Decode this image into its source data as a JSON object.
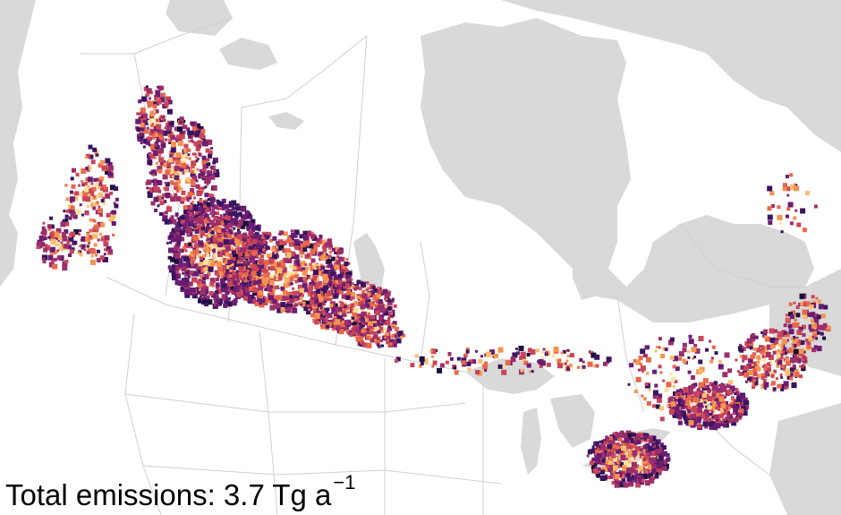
{
  "map": {
    "land_color": "#ffffff",
    "water_color": "#d9d9d9",
    "border_color": "#d0d0d0",
    "palette": [
      "#1a0f3d",
      "#3b1460",
      "#6a1d72",
      "#9c2e6b",
      "#c9455a",
      "#e8684a",
      "#f6934e",
      "#fbbf6e",
      "#fde2a0"
    ]
  },
  "caption": {
    "label": "Total emissions: 3.7 Tg a",
    "exponent": "−1"
  }
}
